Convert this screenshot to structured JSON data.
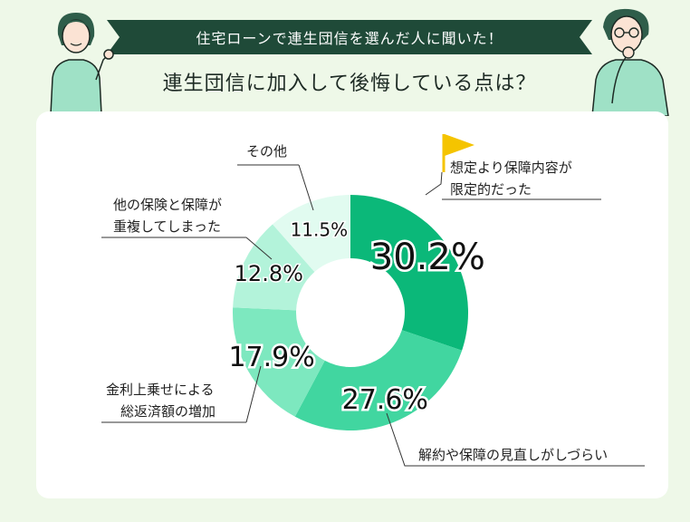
{
  "header": {
    "banner_text": "住宅ローンで連生団信を選んだ人に聞いた！",
    "title": "連生団信に加入して後悔している点は？"
  },
  "colors": {
    "banner": "#1f4a38",
    "background": "#eef8e8",
    "card": "#ffffff",
    "flag": "#f5c400",
    "slices": [
      "#0bb879",
      "#41d6a0",
      "#7de8bf",
      "#b3f3da",
      "#e1fbf0"
    ]
  },
  "chart_data": {
    "type": "pie",
    "donut": true,
    "slices": [
      {
        "label": "想定より保障内容が限定的だった",
        "label_lines": [
          "想定より保障内容が",
          "限定的だった"
        ],
        "value": 30.2,
        "display": "30.2%"
      },
      {
        "label": "解約や保障の見直しがしづらい",
        "label_lines": [
          "解約や保障の見直しがしづらい"
        ],
        "value": 27.6,
        "display": "27.6%"
      },
      {
        "label": "金利上乗せによる総返済額の増加",
        "label_lines": [
          "金利上乗せによる",
          "総返済額の増加"
        ],
        "value": 17.9,
        "display": "17.9%"
      },
      {
        "label": "他の保険と保障が重複してしまった",
        "label_lines": [
          "他の保険と保障が",
          "重複してしまった"
        ],
        "value": 12.8,
        "display": "12.8%"
      },
      {
        "label": "その他",
        "label_lines": [
          "その他"
        ],
        "value": 11.5,
        "display": "11.5%"
      }
    ]
  }
}
